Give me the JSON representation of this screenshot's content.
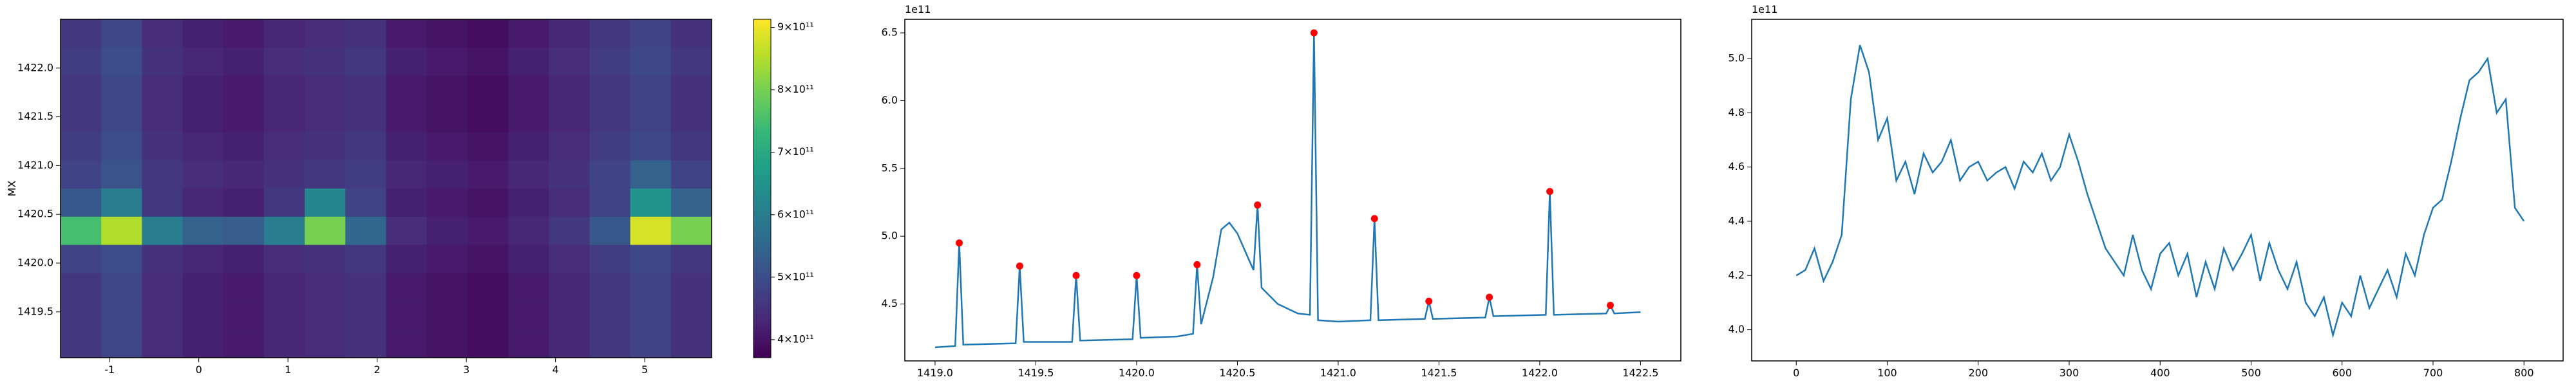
{
  "chart_data": [
    {
      "type": "heatmap",
      "ylabel": "MX",
      "colormap": "viridis",
      "xlim": [
        -1.55,
        5.75
      ],
      "ylim": [
        1419.03,
        1422.5
      ],
      "xticks": [
        -1,
        0,
        1,
        2,
        3,
        4,
        5
      ],
      "yticks": [
        1419.5,
        {
          "value": 1420,
          "label": "1420.0"
        },
        1420.5,
        {
          "value": 1421,
          "label": "1421.0"
        },
        1421.5,
        {
          "value": 1422,
          "label": "1422.0"
        }
      ],
      "values": [
        [
          460000000000.0,
          490000000000.0,
          440000000000.0,
          420000000000.0,
          410000000000.0,
          430000000000.0,
          440000000000.0,
          450000000000.0,
          410000000000.0,
          400000000000.0,
          390000000000.0,
          410000000000.0,
          430000000000.0,
          460000000000.0,
          480000000000.0,
          450000000000.0
        ],
        [
          470000000000.0,
          500000000000.0,
          450000000000.0,
          430000000000.0,
          420000000000.0,
          440000000000.0,
          450000000000.0,
          460000000000.0,
          420000000000.0,
          410000000000.0,
          400000000000.0,
          420000000000.0,
          440000000000.0,
          470000000000.0,
          490000000000.0,
          460000000000.0
        ],
        [
          460000000000.0,
          490000000000.0,
          440000000000.0,
          420000000000.0,
          410000000000.0,
          430000000000.0,
          440000000000.0,
          450000000000.0,
          410000000000.0,
          400000000000.0,
          390000000000.0,
          410000000000.0,
          430000000000.0,
          460000000000.0,
          480000000000.0,
          450000000000.0
        ],
        [
          460000000000.0,
          490000000000.0,
          440000000000.0,
          420000000000.0,
          410000000000.0,
          430000000000.0,
          440000000000.0,
          450000000000.0,
          410000000000.0,
          400000000000.0,
          390000000000.0,
          410000000000.0,
          430000000000.0,
          460000000000.0,
          480000000000.0,
          450000000000.0
        ],
        [
          470000000000.0,
          500000000000.0,
          450000000000.0,
          430000000000.0,
          420000000000.0,
          440000000000.0,
          450000000000.0,
          460000000000.0,
          420000000000.0,
          410000000000.0,
          400000000000.0,
          420000000000.0,
          440000000000.0,
          470000000000.0,
          490000000000.0,
          460000000000.0
        ],
        [
          480000000000.0,
          510000000000.0,
          460000000000.0,
          440000000000.0,
          430000000000.0,
          450000000000.0,
          460000000000.0,
          470000000000.0,
          430000000000.0,
          420000000000.0,
          410000000000.0,
          430000000000.0,
          450000000000.0,
          480000000000.0,
          540000000000.0,
          480000000000.0
        ],
        [
          520000000000.0,
          600000000000.0,
          460000000000.0,
          430000000000.0,
          420000000000.0,
          460000000000.0,
          620000000000.0,
          480000000000.0,
          420000000000.0,
          410000000000.0,
          400000000000.0,
          420000000000.0,
          440000000000.0,
          480000000000.0,
          650000000000.0,
          540000000000.0
        ],
        [
          750000000000.0,
          850000000000.0,
          600000000000.0,
          540000000000.0,
          530000000000.0,
          600000000000.0,
          800000000000.0,
          550000000000.0,
          440000000000.0,
          420000000000.0,
          410000000000.0,
          430000000000.0,
          460000000000.0,
          520000000000.0,
          880000000000.0,
          800000000000.0
        ],
        [
          480000000000.0,
          500000000000.0,
          450000000000.0,
          430000000000.0,
          420000000000.0,
          440000000000.0,
          450000000000.0,
          460000000000.0,
          420000000000.0,
          410000000000.0,
          400000000000.0,
          420000000000.0,
          440000000000.0,
          470000000000.0,
          490000000000.0,
          460000000000.0
        ],
        [
          460000000000.0,
          490000000000.0,
          440000000000.0,
          420000000000.0,
          410000000000.0,
          430000000000.0,
          440000000000.0,
          450000000000.0,
          410000000000.0,
          400000000000.0,
          390000000000.0,
          410000000000.0,
          430000000000.0,
          460000000000.0,
          480000000000.0,
          450000000000.0
        ],
        [
          460000000000.0,
          490000000000.0,
          440000000000.0,
          420000000000.0,
          410000000000.0,
          430000000000.0,
          440000000000.0,
          450000000000.0,
          410000000000.0,
          400000000000.0,
          390000000000.0,
          410000000000.0,
          430000000000.0,
          460000000000.0,
          480000000000.0,
          450000000000.0
        ],
        [
          460000000000.0,
          490000000000.0,
          440000000000.0,
          420000000000.0,
          410000000000.0,
          430000000000.0,
          440000000000.0,
          450000000000.0,
          410000000000.0,
          400000000000.0,
          390000000000.0,
          410000000000.0,
          430000000000.0,
          460000000000.0,
          480000000000.0,
          450000000000.0
        ]
      ],
      "colorbar": {
        "clim": [
          371000000000.0,
          913000000000.0
        ],
        "ticks": [
          {
            "value": 400000000000.0,
            "label": "4×10¹¹"
          },
          {
            "value": 500000000000.0,
            "label": "5×10¹¹"
          },
          {
            "value": 600000000000.0,
            "label": "6×10¹¹"
          },
          {
            "value": 700000000000.0,
            "label": "7×10¹¹"
          },
          {
            "value": 800000000000.0,
            "label": "8×10¹¹"
          },
          {
            "value": 900000000000.0,
            "label": "9×10¹¹"
          }
        ]
      }
    },
    {
      "type": "line",
      "y_offset_label": "1e11",
      "xlim": [
        1418.85,
        1422.7
      ],
      "ylim": [
        4.08,
        6.6
      ],
      "xticks": [
        {
          "value": 1419,
          "label": "1419.0"
        },
        1419.5,
        {
          "value": 1420,
          "label": "1420.0"
        },
        1420.5,
        {
          "value": 1421,
          "label": "1421.0"
        },
        1421.5,
        {
          "value": 1422,
          "label": "1422.0"
        },
        1422.5
      ],
      "yticks": [
        4.5,
        {
          "value": 5,
          "label": "5.0"
        },
        5.5,
        {
          "value": 6,
          "label": "6.0"
        },
        6.5
      ],
      "series": [
        {
          "color": "#1f77b4",
          "style": "line",
          "x": [
            1419.0,
            1419.1,
            1419.12,
            1419.14,
            1419.4,
            1419.42,
            1419.44,
            1419.68,
            1419.7,
            1419.72,
            1419.98,
            1420.0,
            1420.02,
            1420.2,
            1420.28,
            1420.3,
            1420.32,
            1420.38,
            1420.42,
            1420.46,
            1420.5,
            1420.55,
            1420.58,
            1420.6,
            1420.62,
            1420.7,
            1420.8,
            1420.86,
            1420.88,
            1420.9,
            1421.0,
            1421.16,
            1421.18,
            1421.2,
            1421.43,
            1421.45,
            1421.47,
            1421.73,
            1421.75,
            1421.77,
            1422.03,
            1422.05,
            1422.07,
            1422.33,
            1422.35,
            1422.37,
            1422.5
          ],
          "values": [
            4.18,
            4.19,
            4.95,
            4.2,
            4.21,
            4.78,
            4.22,
            4.22,
            4.71,
            4.23,
            4.24,
            4.71,
            4.25,
            4.26,
            4.28,
            4.79,
            4.35,
            4.7,
            5.05,
            5.1,
            5.02,
            4.85,
            4.75,
            5.23,
            4.62,
            4.5,
            4.43,
            4.42,
            6.5,
            4.38,
            4.37,
            4.38,
            5.13,
            4.38,
            4.39,
            4.52,
            4.39,
            4.4,
            4.55,
            4.41,
            4.42,
            5.33,
            4.42,
            4.43,
            4.49,
            4.43,
            4.44
          ]
        },
        {
          "color": "red",
          "style": "markers",
          "x": [
            1419.12,
            1419.42,
            1419.7,
            1420.0,
            1420.3,
            1420.6,
            1420.88,
            1421.18,
            1421.45,
            1421.75,
            1422.05,
            1422.35
          ],
          "values": [
            4.95,
            4.78,
            4.71,
            4.71,
            4.79,
            5.23,
            6.5,
            5.13,
            4.52,
            4.55,
            5.33,
            4.49
          ]
        }
      ]
    },
    {
      "type": "line",
      "y_offset_label": "1e11",
      "xlim": [
        -49,
        843
      ],
      "ylim": [
        3.885,
        5.145
      ],
      "xticks": [
        0,
        100,
        200,
        300,
        400,
        500,
        600,
        700,
        800
      ],
      "yticks": [
        {
          "value": 4,
          "label": "4.0"
        },
        4.2,
        4.4,
        4.6,
        4.8,
        {
          "value": 5,
          "label": "5.0"
        }
      ],
      "series": [
        {
          "color": "#1f77b4",
          "style": "line",
          "x": [
            0,
            10,
            20,
            30,
            40,
            50,
            60,
            70,
            80,
            90,
            100,
            110,
            120,
            130,
            140,
            150,
            160,
            170,
            180,
            190,
            200,
            210,
            220,
            230,
            240,
            250,
            260,
            270,
            280,
            290,
            300,
            310,
            320,
            330,
            340,
            350,
            360,
            370,
            380,
            390,
            400,
            410,
            420,
            430,
            440,
            450,
            460,
            470,
            480,
            490,
            500,
            510,
            520,
            530,
            540,
            550,
            560,
            570,
            580,
            590,
            600,
            610,
            620,
            630,
            640,
            650,
            660,
            670,
            680,
            690,
            700,
            710,
            720,
            730,
            740,
            750,
            760,
            770,
            780,
            790,
            800
          ],
          "values": [
            4.2,
            4.22,
            4.3,
            4.18,
            4.25,
            4.35,
            4.85,
            5.05,
            4.95,
            4.7,
            4.78,
            4.55,
            4.62,
            4.5,
            4.65,
            4.58,
            4.62,
            4.7,
            4.55,
            4.6,
            4.62,
            4.55,
            4.58,
            4.6,
            4.52,
            4.62,
            4.58,
            4.65,
            4.55,
            4.6,
            4.72,
            4.62,
            4.5,
            4.4,
            4.3,
            4.25,
            4.2,
            4.35,
            4.22,
            4.15,
            4.28,
            4.32,
            4.2,
            4.28,
            4.12,
            4.25,
            4.15,
            4.3,
            4.22,
            4.28,
            4.35,
            4.18,
            4.32,
            4.22,
            4.15,
            4.25,
            4.1,
            4.05,
            4.12,
            3.98,
            4.1,
            4.05,
            4.2,
            4.08,
            4.15,
            4.22,
            4.12,
            4.28,
            4.2,
            4.35,
            4.45,
            4.48,
            4.62,
            4.78,
            4.92,
            4.95,
            5.0,
            4.8,
            4.85,
            4.45,
            4.4
          ]
        }
      ]
    }
  ]
}
